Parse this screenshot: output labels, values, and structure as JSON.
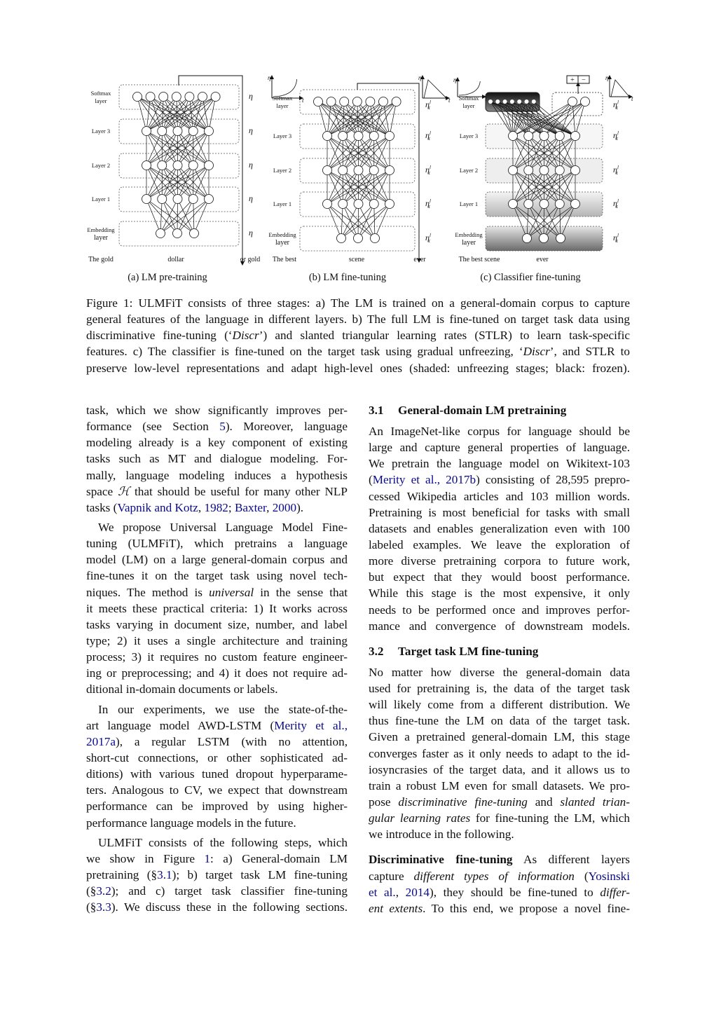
{
  "figure": {
    "layer_labels": [
      [
        "Softmax",
        "layer"
      ],
      [
        "Layer 3"
      ],
      [
        "Layer 2"
      ],
      [
        "Layer 1"
      ],
      [
        "Embedding",
        "layer"
      ]
    ],
    "rate_symbol": "η",
    "rate_sub": "t",
    "rate_sup": "l",
    "inset_axis_y": "η",
    "inset_axis_x": "t",
    "classifier_outputs": [
      "+",
      "−"
    ],
    "panels": [
      {
        "caption": "(a) LM pre-training",
        "words": [
          "The gold",
          "dollar",
          "or  gold"
        ]
      },
      {
        "caption": "(b) LM fine-tuning",
        "words": [
          "The best",
          "scene",
          "ever"
        ]
      },
      {
        "caption": "(c) Classifier fine-tuning",
        "words": [
          "The best scene",
          "ever"
        ]
      }
    ]
  },
  "caption": {
    "lines": [
      [
        "Figure 1: ULMFiT consists of three stages: a) The LM is trained on a general-domain corpus to capture"
      ],
      [
        "general features of the language in different layers. b) The full LM is fine-tuned on target task data using"
      ],
      [
        "discriminative fine-tuning (‘",
        {
          "t": "Discr",
          "s": "em"
        },
        "’) and slanted triangular learning rates (STLR) to learn task-specific"
      ],
      [
        "features. c) The classifier is fine-tuned on the target task using gradual unfreezing, ‘",
        {
          "t": "Discr",
          "s": "em"
        },
        "’, and STLR to"
      ],
      [
        "preserve low-level representations and adapt high-level ones (shaded: unfreezing stages; black: frozen)."
      ]
    ]
  },
  "col1": [
    {
      "lines": [
        [
          "task, which we show significantly improves per-"
        ],
        [
          "formance (see Section ",
          {
            "t": "5",
            "s": "link"
          },
          ").  Moreover, language"
        ],
        [
          "modeling already is a key component of existing"
        ],
        [
          "tasks such as MT and dialogue modeling.  For-"
        ],
        [
          "mally, language modeling induces a hypothesis"
        ],
        [
          "space ",
          {
            "t": "ℋ",
            "s": "em"
          },
          " that should be useful for many other NLP"
        ],
        [
          "tasks (",
          {
            "t": "Vapnik and Kotz",
            "s": "link"
          },
          ", ",
          {
            "t": "1982",
            "s": "link"
          },
          "; ",
          {
            "t": "Baxter",
            "s": "link"
          },
          ", ",
          {
            "t": "2000",
            "s": "link"
          },
          ")."
        ]
      ]
    },
    {
      "indent": true,
      "lines": [
        [
          "We propose Universal Language Model Fine-"
        ],
        [
          "tuning (ULMFiT), which pretrains a language"
        ],
        [
          "model (LM) on a large general-domain corpus and"
        ],
        [
          "fine-tunes it on the target task using novel tech-"
        ],
        [
          "niques. The method is ",
          {
            "t": "universal",
            "s": "em"
          },
          " in the sense that"
        ],
        [
          "it meets these practical criteria: 1) It works across"
        ],
        [
          "tasks varying in document size, number, and label"
        ],
        [
          "type; 2) it uses a single architecture and training"
        ],
        [
          "process; 3) it requires no custom feature engineer-"
        ],
        [
          "ing or preprocessing; and 4) it does not require ad-"
        ],
        [
          "ditional in-domain documents or labels."
        ]
      ]
    },
    {
      "indent": true,
      "lines": [
        [
          "In our experiments, we use the state-of-the-"
        ],
        [
          "art language model AWD-LSTM (",
          {
            "t": "Merity et al.,",
            "s": "link"
          }
        ],
        [
          {
            "t": "2017a",
            "s": "link"
          },
          "), a regular LSTM (with no attention,"
        ],
        [
          "short-cut connections, or other sophisticated ad-"
        ],
        [
          "ditions) with various tuned dropout hyperparame-"
        ],
        [
          "ters. Analogous to CV, we expect that downstream"
        ],
        [
          "performance can be improved by using higher-"
        ],
        [
          "performance language models in the future."
        ]
      ]
    },
    {
      "indent": true,
      "full_last": true,
      "lines": [
        [
          "ULMFiT consists of the following steps, which"
        ],
        [
          "we show in Figure ",
          {
            "t": "1",
            "s": "link"
          },
          ":  a) General-domain LM"
        ],
        [
          "pretraining (§",
          {
            "t": "3.1",
            "s": "link"
          },
          "); b) target task LM fine-tuning"
        ],
        [
          "(§",
          {
            "t": "3.2",
            "s": "link"
          },
          "); and c) target task classifier fine-tuning"
        ],
        [
          "(§",
          {
            "t": "3.3",
            "s": "link"
          },
          "). We discuss these in the following sections."
        ]
      ]
    }
  ],
  "col2": [
    {
      "heading": {
        "num": "3.1",
        "title": "General-domain LM pretraining"
      }
    },
    {
      "full_last": true,
      "lines": [
        [
          "An ImageNet-like corpus for language should be"
        ],
        [
          "large and capture general properties of language."
        ],
        [
          "We pretrain the language model on Wikitext-103"
        ],
        [
          "(",
          {
            "t": "Merity et al., 2017b",
            "s": "link"
          },
          ") consisting of 28,595 prepro-"
        ],
        [
          "cessed Wikipedia articles and 103 million words."
        ],
        [
          "Pretraining is most beneficial for tasks with small"
        ],
        [
          "datasets and enables generalization even with 100"
        ],
        [
          "labeled examples.  We leave the exploration of"
        ],
        [
          "more diverse pretraining corpora to future work,"
        ],
        [
          "but expect that they would boost performance."
        ],
        [
          "While this stage is the most expensive, it only"
        ],
        [
          "needs to be performed once and improves perfor-"
        ],
        [
          "mance and convergence of downstream models."
        ]
      ]
    },
    {
      "heading": {
        "num": "3.2",
        "title": "Target task LM fine-tuning"
      }
    },
    {
      "lines": [
        [
          "No matter how diverse the general-domain data"
        ],
        [
          "used for pretraining is, the data of the target task"
        ],
        [
          "will likely come from a different distribution. We"
        ],
        [
          "thus fine-tune the LM on data of the target task."
        ],
        [
          "Given a pretrained general-domain LM, this stage"
        ],
        [
          "converges faster as it only needs to adapt to the id-"
        ],
        [
          "iosyncrasies of the target data, and it allows us to"
        ],
        [
          "train a robust LM even for small datasets. We pro-"
        ],
        [
          "pose ",
          {
            "t": "discriminative fine-tuning",
            "s": "em"
          },
          " and ",
          {
            "t": "slanted trian-",
            "s": "em"
          }
        ],
        [
          {
            "t": "gular learning rates",
            "s": "em"
          },
          " for fine-tuning the LM, which"
        ],
        [
          "we introduce in the following."
        ]
      ]
    },
    {
      "full_last": true,
      "lines": [
        [
          {
            "t": "Discriminative fine-tuning",
            "s": "b"
          },
          "   As different layers"
        ],
        [
          "capture ",
          {
            "t": "different types of information",
            "s": "em"
          },
          " (",
          {
            "t": "Yosinski",
            "s": "link"
          }
        ],
        [
          {
            "t": "et al.",
            "s": "link"
          },
          ", ",
          {
            "t": "2014",
            "s": "link"
          },
          "), they should be fine-tuned to ",
          {
            "t": "differ-",
            "s": "em"
          }
        ],
        [
          {
            "t": "ent extents",
            "s": "em"
          },
          ". To this end, we propose a novel fine-"
        ]
      ]
    }
  ]
}
